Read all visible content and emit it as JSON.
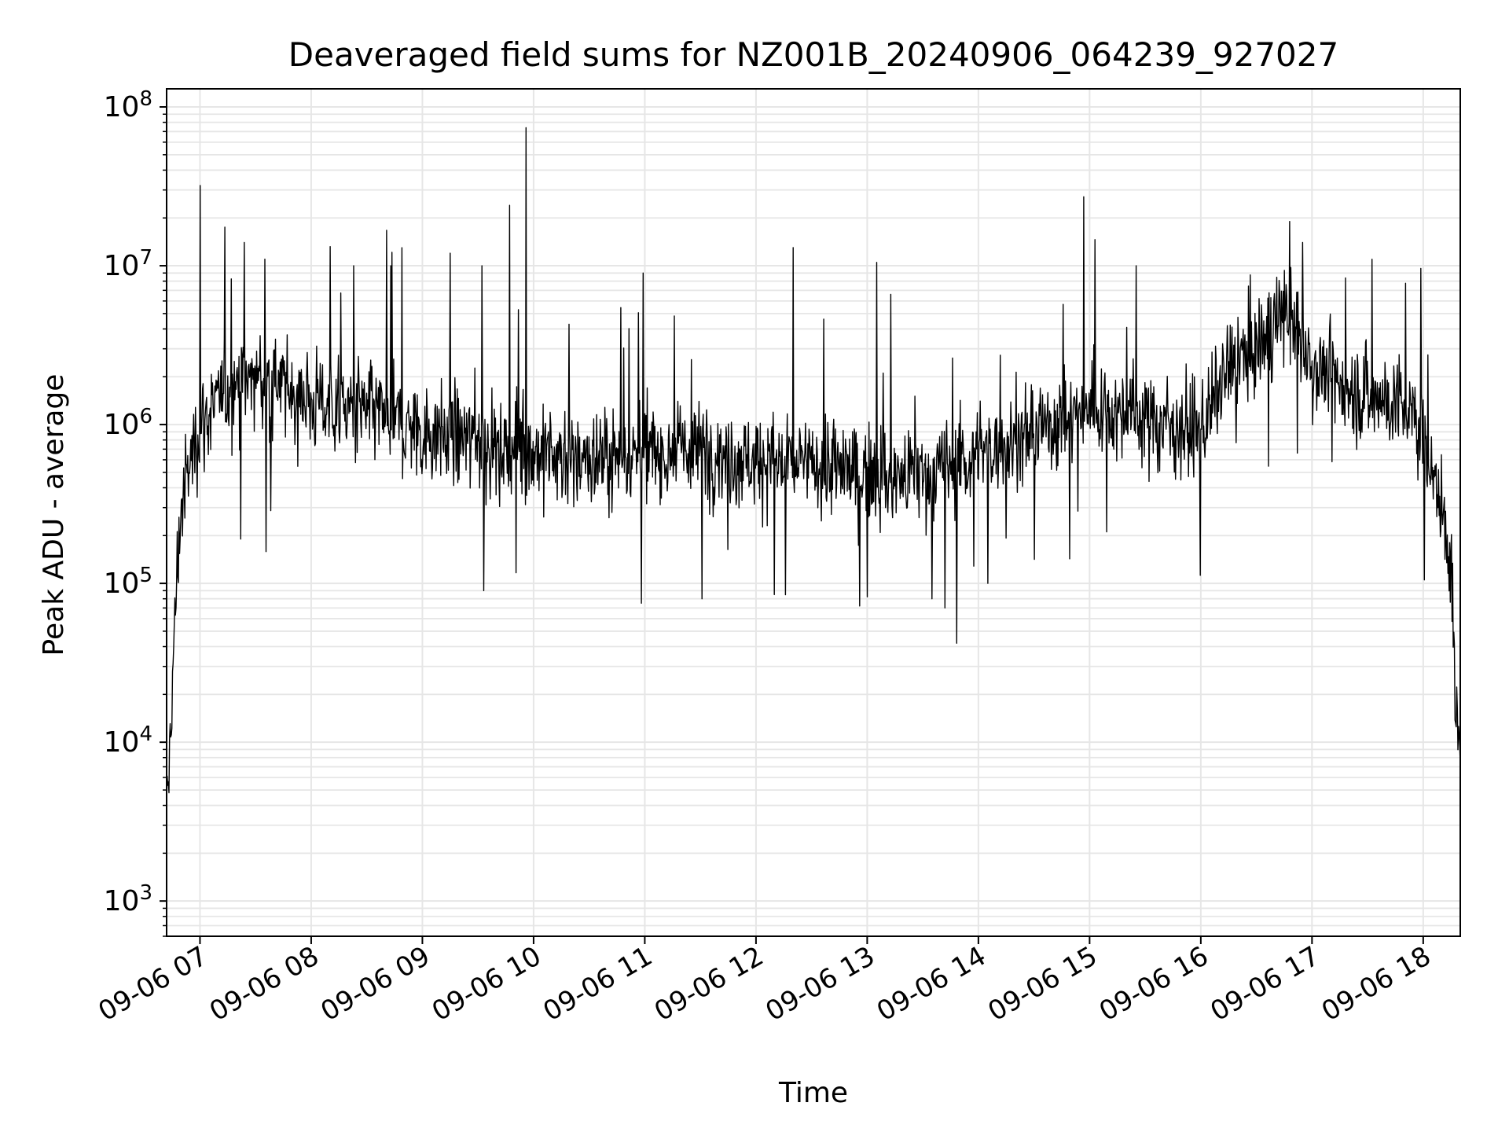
{
  "chart_data": {
    "type": "line",
    "title": "Deaveraged field sums for NZ001B_20240906_064239_927027",
    "xlabel": "Time",
    "ylabel": "Peak ADU - average",
    "y_scale": "log",
    "ylim": [
      600,
      130000000
    ],
    "xlim": [
      "2024-09-06 06:42",
      "2024-09-06 18:20"
    ],
    "x_ticks": [
      {
        "time": "2024-09-06 07:00",
        "label": "09-06 07"
      },
      {
        "time": "2024-09-06 08:00",
        "label": "09-06 08"
      },
      {
        "time": "2024-09-06 09:00",
        "label": "09-06 09"
      },
      {
        "time": "2024-09-06 10:00",
        "label": "09-06 10"
      },
      {
        "time": "2024-09-06 11:00",
        "label": "09-06 11"
      },
      {
        "time": "2024-09-06 12:00",
        "label": "09-06 12"
      },
      {
        "time": "2024-09-06 13:00",
        "label": "09-06 13"
      },
      {
        "time": "2024-09-06 14:00",
        "label": "09-06 14"
      },
      {
        "time": "2024-09-06 15:00",
        "label": "09-06 15"
      },
      {
        "time": "2024-09-06 16:00",
        "label": "09-06 16"
      },
      {
        "time": "2024-09-06 17:00",
        "label": "09-06 17"
      },
      {
        "time": "2024-09-06 18:00",
        "label": "09-06 18"
      }
    ],
    "y_ticks": [
      {
        "value": 1000,
        "base": "10",
        "exp": "3"
      },
      {
        "value": 10000,
        "base": "10",
        "exp": "4"
      },
      {
        "value": 100000,
        "base": "10",
        "exp": "5"
      },
      {
        "value": 1000000,
        "base": "10",
        "exp": "6"
      },
      {
        "value": 10000000,
        "base": "10",
        "exp": "7"
      },
      {
        "value": 100000000,
        "base": "10",
        "exp": "8"
      }
    ],
    "grid": true,
    "line_color": "#000000",
    "grid_color": "#e6e6e6",
    "series": [
      {
        "points": [
          {
            "t": "2024-09-06 06:42",
            "y": 2500
          },
          {
            "t": "2024-09-06 06:44",
            "y": 12000
          },
          {
            "t": "2024-09-06 06:46",
            "y": 40000
          },
          {
            "t": "2024-09-06 06:48",
            "y": 150000
          },
          {
            "t": "2024-09-06 06:50",
            "y": 300000
          },
          {
            "t": "2024-09-06 06:55",
            "y": 600000
          },
          {
            "t": "2024-09-06 07:00",
            "y": 1000000
          },
          {
            "t": "2024-09-06 07:15",
            "y": 1600000
          },
          {
            "t": "2024-09-06 07:30",
            "y": 2000000
          },
          {
            "t": "2024-09-06 07:45",
            "y": 1700000
          },
          {
            "t": "2024-09-06 08:00",
            "y": 1400000
          },
          {
            "t": "2024-09-06 08:30",
            "y": 1200000
          },
          {
            "t": "2024-09-06 09:00",
            "y": 900000
          },
          {
            "t": "2024-09-06 09:30",
            "y": 800000
          },
          {
            "t": "2024-09-06 10:00",
            "y": 650000
          },
          {
            "t": "2024-09-06 10:30",
            "y": 600000
          },
          {
            "t": "2024-09-06 11:00",
            "y": 650000
          },
          {
            "t": "2024-09-06 11:30",
            "y": 700000
          },
          {
            "t": "2024-09-06 12:00",
            "y": 600000
          },
          {
            "t": "2024-09-06 12:30",
            "y": 550000
          },
          {
            "t": "2024-09-06 13:00",
            "y": 500000
          },
          {
            "t": "2024-09-06 13:30",
            "y": 450000
          },
          {
            "t": "2024-09-06 14:00",
            "y": 650000
          },
          {
            "t": "2024-09-06 14:30",
            "y": 900000
          },
          {
            "t": "2024-09-06 15:00",
            "y": 1300000
          },
          {
            "t": "2024-09-06 15:30",
            "y": 1100000
          },
          {
            "t": "2024-09-06 16:00",
            "y": 900000
          },
          {
            "t": "2024-09-06 16:15",
            "y": 2200000
          },
          {
            "t": "2024-09-06 16:30",
            "y": 3000000
          },
          {
            "t": "2024-09-06 16:45",
            "y": 5000000
          },
          {
            "t": "2024-09-06 17:00",
            "y": 2500000
          },
          {
            "t": "2024-09-06 17:15",
            "y": 1800000
          },
          {
            "t": "2024-09-06 17:30",
            "y": 1500000
          },
          {
            "t": "2024-09-06 17:45",
            "y": 1400000
          },
          {
            "t": "2024-09-06 18:00",
            "y": 900000
          },
          {
            "t": "2024-09-06 18:15",
            "y": 150000
          },
          {
            "t": "2024-09-06 18:17",
            "y": 20000
          },
          {
            "t": "2024-09-06 18:20",
            "y": 8000
          }
        ],
        "noise_decades": 0.28,
        "sample_count": 2200,
        "spikes": [
          {
            "t": "2024-09-06 07:00",
            "y": 32000000
          },
          {
            "t": "2024-09-06 07:24",
            "y": 14000000
          },
          {
            "t": "2024-09-06 07:35",
            "y": 11000000
          },
          {
            "t": "2024-09-06 08:23",
            "y": 10000000
          },
          {
            "t": "2024-09-06 08:43",
            "y": 10000000
          },
          {
            "t": "2024-09-06 09:15",
            "y": 12000000
          },
          {
            "t": "2024-09-06 09:32",
            "y": 10000000
          },
          {
            "t": "2024-09-06 09:47",
            "y": 24000000
          },
          {
            "t": "2024-09-06 09:56",
            "y": 74000000
          },
          {
            "t": "2024-09-06 10:59",
            "y": 9000000
          },
          {
            "t": "2024-09-06 12:20",
            "y": 13000000
          },
          {
            "t": "2024-09-06 13:05",
            "y": 10500000
          },
          {
            "t": "2024-09-06 15:25",
            "y": 10000000
          },
          {
            "t": "2024-09-06 16:48",
            "y": 19000000
          },
          {
            "t": "2024-09-06 16:55",
            "y": 14000000
          },
          {
            "t": "2024-09-06 07:22",
            "y": 190000
          },
          {
            "t": "2024-09-06 09:33",
            "y": 90000
          },
          {
            "t": "2024-09-06 10:58",
            "y": 75000
          },
          {
            "t": "2024-09-06 11:31",
            "y": 80000
          },
          {
            "t": "2024-09-06 12:10",
            "y": 85000
          },
          {
            "t": "2024-09-06 12:56",
            "y": 72000
          },
          {
            "t": "2024-09-06 13:35",
            "y": 80000
          },
          {
            "t": "2024-09-06 13:42",
            "y": 70000
          },
          {
            "t": "2024-09-06 14:05",
            "y": 100000
          }
        ]
      }
    ]
  }
}
